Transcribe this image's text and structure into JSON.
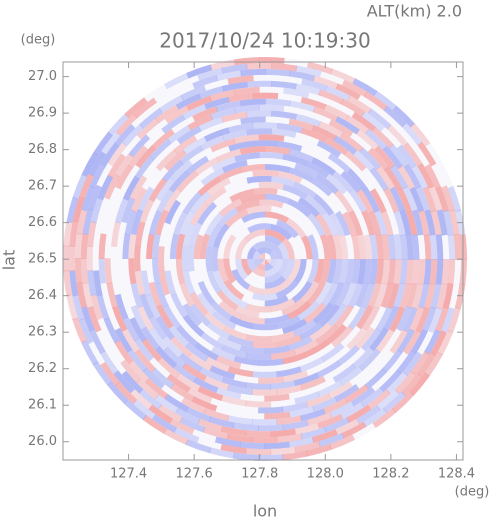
{
  "chart_data": {
    "type": "radar-ppi",
    "title": "2017/10/24 10:19:30",
    "subtitle": "ALT(km) 2.0",
    "x_label": "lon",
    "y_label": "lat",
    "x_unit": "(deg)",
    "y_unit": "(deg)",
    "xlim": [
      127.2,
      128.42
    ],
    "ylim": [
      25.95,
      27.04
    ],
    "xticks": [
      127.4,
      127.6,
      127.8,
      {
        "value": 128,
        "label": "128.0"
      },
      128.2,
      128.4
    ],
    "yticks": [
      {
        "value": 26,
        "label": "26.0"
      },
      26.1,
      26.2,
      26.3,
      26.4,
      26.5,
      26.6,
      26.7,
      26.8,
      26.9,
      {
        "value": 27,
        "label": "27.0"
      }
    ],
    "colors": [
      "#f4a6a6",
      "#a9b1f4"
    ]
  }
}
